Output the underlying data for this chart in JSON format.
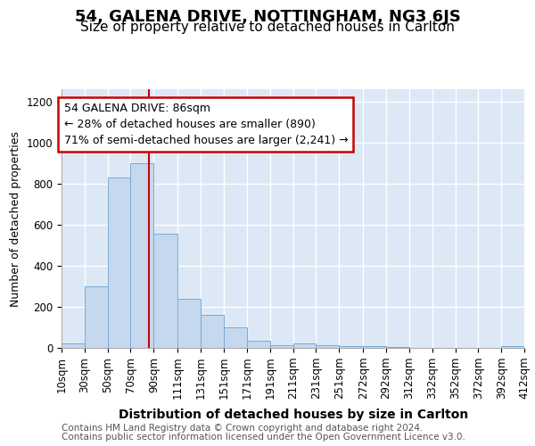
{
  "title1": "54, GALENA DRIVE, NOTTINGHAM, NG3 6JS",
  "title2": "Size of property relative to detached houses in Carlton",
  "xlabel": "Distribution of detached houses by size in Carlton",
  "ylabel": "Number of detached properties",
  "footer1": "Contains HM Land Registry data © Crown copyright and database right 2024.",
  "footer2": "Contains public sector information licensed under the Open Government Licence v3.0.",
  "annotation_title": "54 GALENA DRIVE: 86sqm",
  "annotation_line1": "← 28% of detached houses are smaller (890)",
  "annotation_line2": "71% of semi-detached houses are larger (2,241) →",
  "bin_edges": [
    10,
    30,
    50,
    70,
    90,
    111,
    131,
    151,
    171,
    191,
    211,
    231,
    251,
    272,
    292,
    312,
    332,
    352,
    372,
    392,
    412
  ],
  "bar_heights": [
    20,
    300,
    830,
    900,
    555,
    240,
    160,
    100,
    33,
    15,
    20,
    12,
    8,
    10,
    5,
    0,
    0,
    0,
    0,
    8
  ],
  "bar_color": "#c5d8ee",
  "bar_edge_color": "#7aaad4",
  "vline_color": "#cc0000",
  "vline_x": 86,
  "ylim": [
    0,
    1260
  ],
  "yticks": [
    0,
    200,
    400,
    600,
    800,
    1000,
    1200
  ],
  "background_color": "#dce8f5",
  "grid_color": "#ffffff",
  "annotation_box_facecolor": "#ffffff",
  "annotation_box_edgecolor": "#cc0000",
  "title1_fontsize": 13,
  "title2_fontsize": 11,
  "ylabel_fontsize": 9,
  "xlabel_fontsize": 10,
  "tick_fontsize": 8.5,
  "annotation_fontsize": 9,
  "footer_fontsize": 7.5
}
